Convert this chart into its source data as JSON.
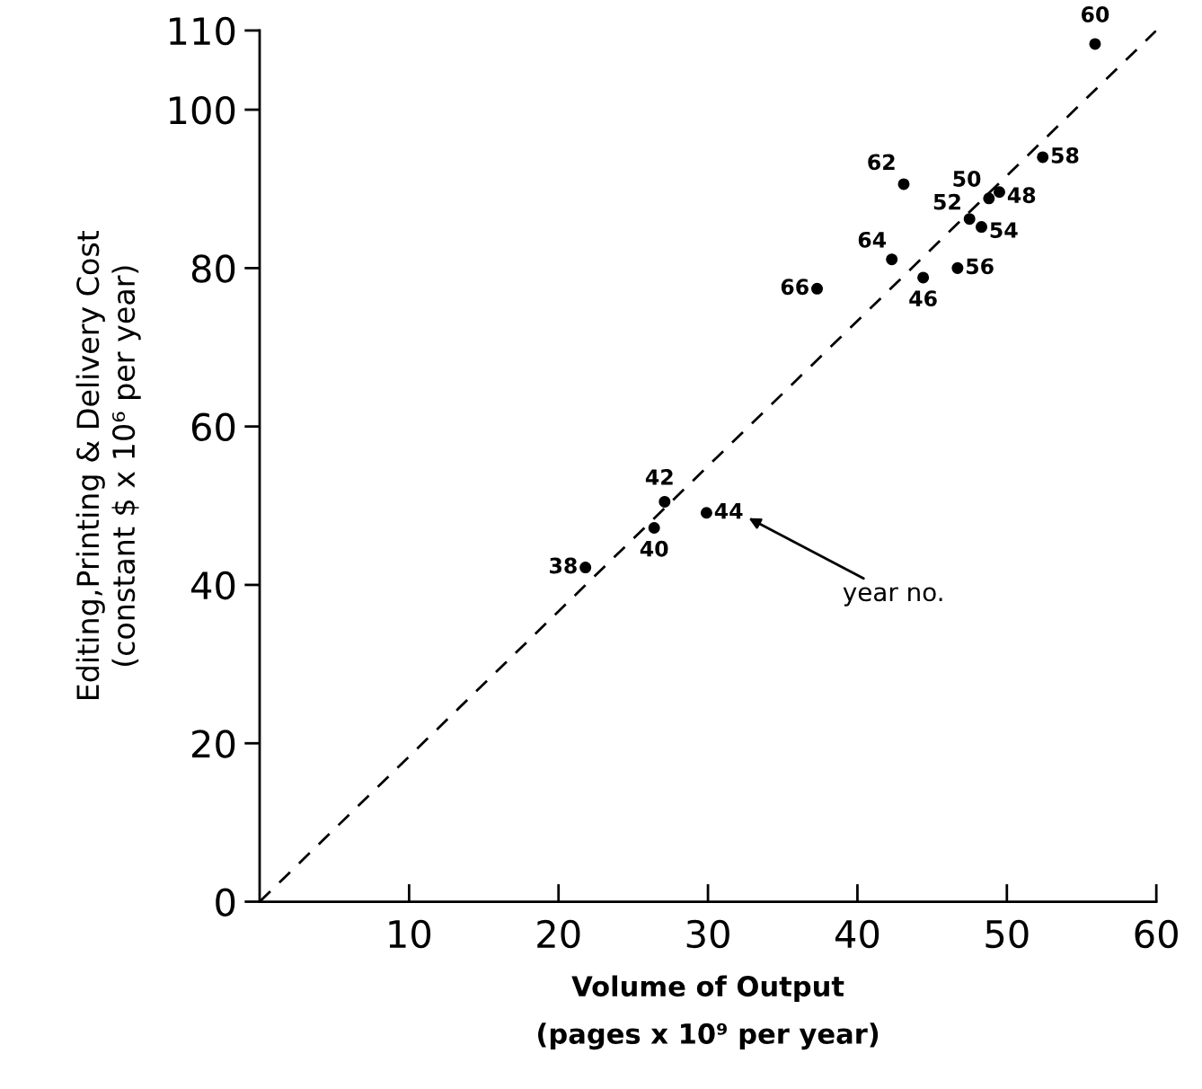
{
  "chart_data": {
    "type": "scatter",
    "xlabel": "Volume of Output\n(pages x 10⁹ per year)",
    "ylabel": "Editing,Printing & Delivery Cost\n(constant $ x 10⁶ per year)",
    "xlim": [
      0,
      60
    ],
    "xticks": [
      10,
      20,
      30,
      40,
      50,
      60
    ],
    "ylim": [
      0,
      110
    ],
    "yticks": [
      0,
      20,
      40,
      60,
      80,
      100,
      110
    ],
    "grid": false,
    "series": [
      {
        "color": "#000000",
        "marker": "circle",
        "x": [
          55.9,
          52.4,
          43.1,
          48.8,
          49.5,
          47.5,
          48.3,
          42.3,
          46.7,
          44.4,
          37.3,
          27.1,
          29.9,
          26.4,
          21.8
        ],
        "values": [
          108.3,
          94.0,
          90.6,
          88.8,
          89.6,
          86.2,
          85.2,
          81.1,
          80.0,
          78.8,
          77.4,
          50.5,
          49.1,
          47.2,
          42.2
        ]
      },
      {
        "type": "line",
        "color": "#000000",
        "line_style": "dashed",
        "x": [
          0,
          60
        ],
        "values": [
          0,
          110
        ]
      }
    ],
    "annotations": [
      {
        "text": "60",
        "x": 55.9,
        "y": 108.3
      },
      {
        "text": "58",
        "x": 52.4,
        "y": 94.0
      },
      {
        "text": "62",
        "x": 43.1,
        "y": 90.6
      },
      {
        "text": "50",
        "x": 48.8,
        "y": 88.8
      },
      {
        "text": "48",
        "x": 49.5,
        "y": 89.6
      },
      {
        "text": "52",
        "x": 47.5,
        "y": 86.2
      },
      {
        "text": "54",
        "x": 48.3,
        "y": 85.2
      },
      {
        "text": "64",
        "x": 42.3,
        "y": 81.1
      },
      {
        "text": "56",
        "x": 46.7,
        "y": 80.0
      },
      {
        "text": "46",
        "x": 44.4,
        "y": 78.8
      },
      {
        "text": "66",
        "x": 37.3,
        "y": 77.4
      },
      {
        "text": "42",
        "x": 27.1,
        "y": 50.5
      },
      {
        "text": "44",
        "x": 29.9,
        "y": 49.1
      },
      {
        "text": "40",
        "x": 26.4,
        "y": 47.2
      },
      {
        "text": "38",
        "x": 21.8,
        "y": 42.2
      },
      "year no."
    ]
  }
}
